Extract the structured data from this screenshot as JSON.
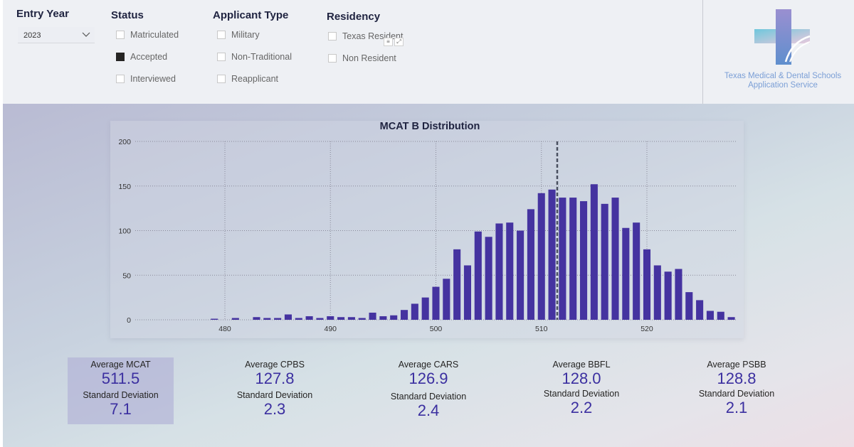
{
  "filters": {
    "entry_year": {
      "title": "Entry Year",
      "selected": "2023"
    },
    "status": {
      "title": "Status",
      "options": [
        {
          "label": "Matriculated",
          "checked": false
        },
        {
          "label": "Accepted",
          "checked": true
        },
        {
          "label": "Interviewed",
          "checked": false
        }
      ]
    },
    "applicant_type": {
      "title": "Applicant Type",
      "options": [
        {
          "label": "Military",
          "checked": false
        },
        {
          "label": "Non-Traditional",
          "checked": false
        },
        {
          "label": "Reapplicant",
          "checked": false
        }
      ]
    },
    "residency": {
      "title": "Residency",
      "options": [
        {
          "label": "Texas Resident",
          "checked": false
        },
        {
          "label": "Non Resident",
          "checked": false
        }
      ]
    }
  },
  "logo": {
    "line1": "Texas Medical & Dental Schools",
    "line2": "Application Service"
  },
  "chart_data": {
    "type": "bar",
    "title": "MCAT B Distribution",
    "xlabel": "",
    "ylabel": "",
    "xlim": [
      472,
      528
    ],
    "ylim": [
      0,
      200
    ],
    "x_ticks": [
      480,
      490,
      500,
      510,
      520
    ],
    "y_ticks": [
      0,
      50,
      100,
      150,
      200
    ],
    "reference_line": 511.5,
    "x": [
      472,
      473,
      474,
      475,
      476,
      477,
      478,
      479,
      480,
      481,
      482,
      483,
      484,
      485,
      486,
      487,
      488,
      489,
      490,
      491,
      492,
      493,
      494,
      495,
      496,
      497,
      498,
      499,
      500,
      501,
      502,
      503,
      504,
      505,
      506,
      507,
      508,
      509,
      510,
      511,
      512,
      513,
      514,
      515,
      516,
      517,
      518,
      519,
      520,
      521,
      522,
      523,
      524,
      525,
      526,
      527,
      528
    ],
    "values": [
      0,
      0,
      0,
      0,
      0,
      0,
      0,
      1,
      0,
      2,
      0,
      3,
      2,
      2,
      6,
      2,
      4,
      2,
      4,
      3,
      3,
      2,
      8,
      4,
      5,
      11,
      18,
      25,
      37,
      46,
      79,
      61,
      99,
      93,
      108,
      109,
      100,
      124,
      142,
      146,
      137,
      137,
      133,
      152,
      130,
      137,
      103,
      109,
      79,
      61,
      54,
      57,
      31,
      22,
      10,
      9,
      3
    ]
  },
  "stats": [
    {
      "label": "Average MCAT",
      "value": "511.5",
      "sd_label": "Standard Deviation",
      "sd": "7.1"
    },
    {
      "label": "Average CPBS",
      "value": "127.8",
      "sd_label": "Standard Deviation",
      "sd": "2.3"
    },
    {
      "label": "Average CARS",
      "value": "126.9",
      "sd_label": "Standard Deviation",
      "sd": "2.4"
    },
    {
      "label": "Average BBFL",
      "value": "128.0",
      "sd_label": "Standard Deviation",
      "sd": "2.2"
    },
    {
      "label": "Average PSBB",
      "value": "128.8",
      "sd_label": "Standard Deviation",
      "sd": "2.1"
    }
  ]
}
